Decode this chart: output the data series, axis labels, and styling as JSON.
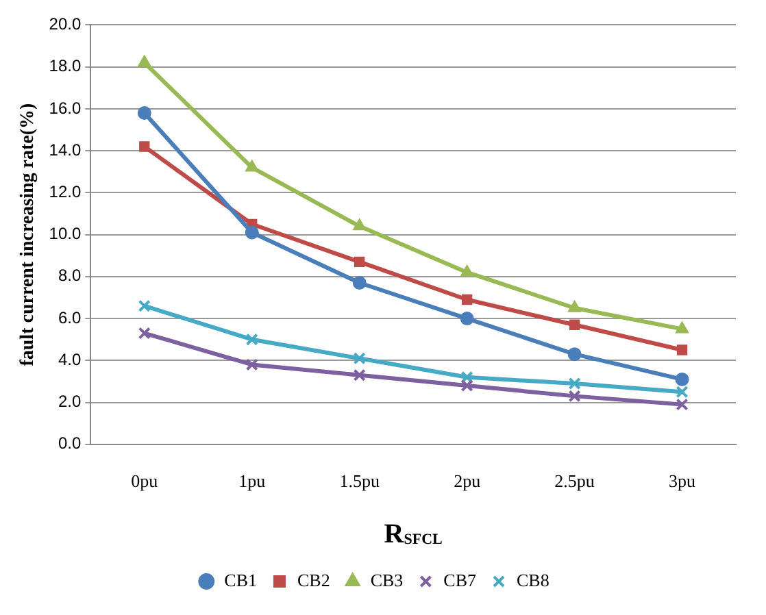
{
  "chart_data": {
    "type": "line",
    "xlabel": "R$_{SFCL}$",
    "ylabel": "fault current increasing rate(%)",
    "categories": [
      "0pu",
      "1pu",
      "1.5pu",
      "2pu",
      "2.5pu",
      "3pu"
    ],
    "series": [
      {
        "name": "CB1",
        "color": "#4a7ebb",
        "marker": "circle",
        "values": [
          15.8,
          10.1,
          7.7,
          6.0,
          4.3,
          3.1
        ]
      },
      {
        "name": "CB2",
        "color": "#be4b48",
        "marker": "square",
        "values": [
          14.2,
          10.5,
          8.7,
          6.9,
          5.7,
          4.5
        ]
      },
      {
        "name": "CB3",
        "color": "#98b954",
        "marker": "triangle",
        "values": [
          18.2,
          13.2,
          10.4,
          8.2,
          6.5,
          5.5
        ]
      },
      {
        "name": "CB7",
        "color": "#7d60a0",
        "marker": "cross",
        "values": [
          5.3,
          3.8,
          3.3,
          2.8,
          2.3,
          1.9
        ]
      },
      {
        "name": "CB8",
        "color": "#46aac5",
        "marker": "cross",
        "values": [
          6.6,
          5.0,
          4.1,
          3.2,
          2.9,
          2.5
        ]
      }
    ],
    "ylim": [
      0,
      20
    ],
    "yticks": [
      {
        "value": 0,
        "label": "0.0"
      },
      {
        "value": 2,
        "label": "2.0"
      },
      {
        "value": 4,
        "label": "4.0"
      },
      {
        "value": 6,
        "label": "6.0"
      },
      {
        "value": 8,
        "label": "8.0"
      },
      {
        "value": 10,
        "label": "10.0"
      },
      {
        "value": 12,
        "label": "12.0"
      },
      {
        "value": 14,
        "label": "14.0"
      },
      {
        "value": 16,
        "label": "16.0"
      },
      {
        "value": 18,
        "label": "18.0"
      },
      {
        "value": 20,
        "label": "20.0"
      }
    ],
    "grid": "y",
    "legend": "bottom",
    "line_style": "solid"
  }
}
